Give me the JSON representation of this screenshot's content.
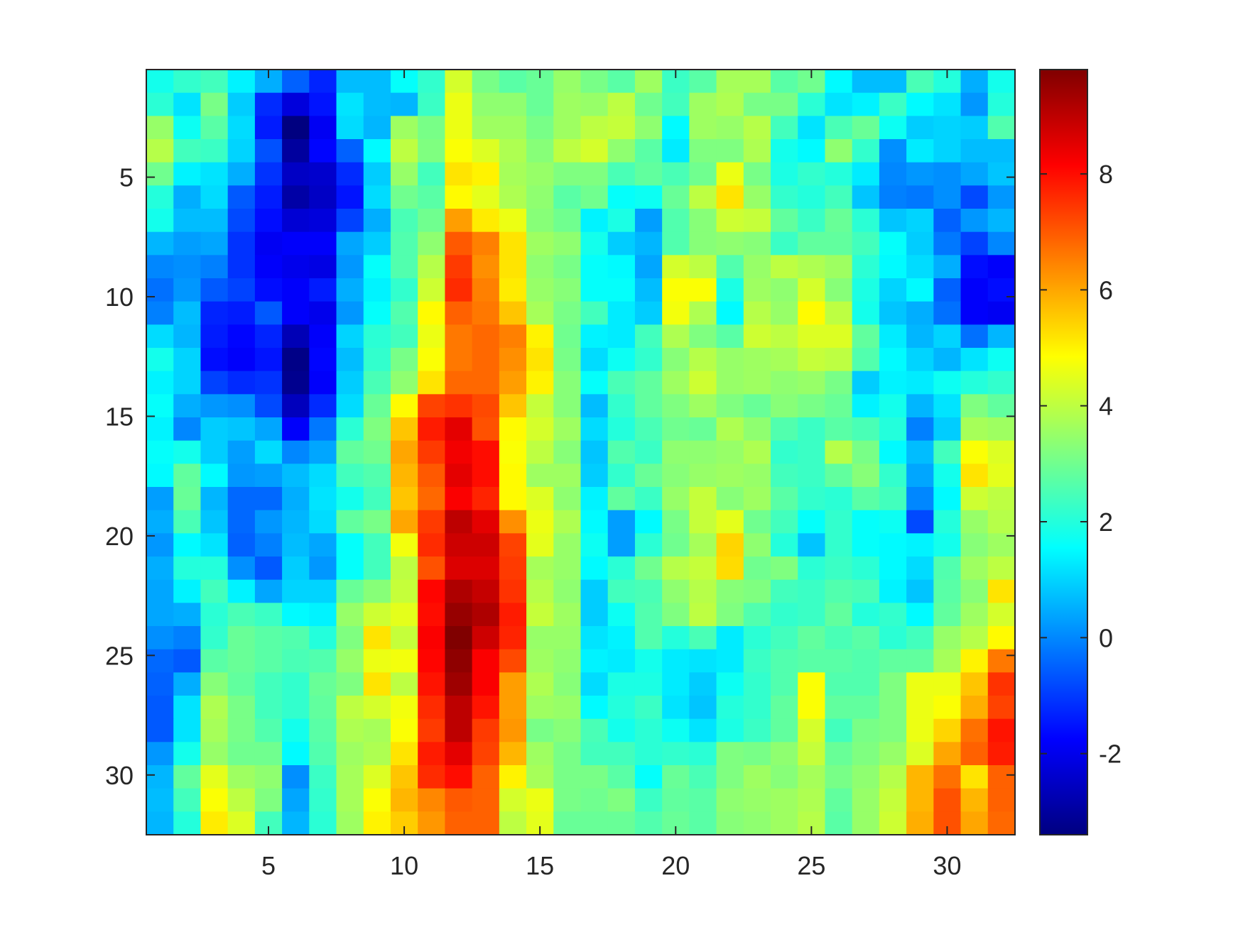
{
  "chart_data": {
    "type": "heatmap",
    "title": "",
    "xlabel": "",
    "ylabel": "",
    "xlim": [
      0.5,
      32.5
    ],
    "ylim": [
      0.5,
      32.5
    ],
    "y_direction": "reversed (row 1 at top)",
    "x_ticks": [
      5,
      10,
      15,
      20,
      25,
      30
    ],
    "y_ticks": [
      5,
      10,
      15,
      20,
      25,
      30
    ],
    "colorbar": {
      "colormap": "jet",
      "range": [
        -3.4,
        9.8
      ],
      "ticks": [
        -2,
        0,
        2,
        4,
        6,
        8
      ],
      "placement": "right"
    },
    "grid": false,
    "matrix": [
      [
        1.8,
        2.2,
        2.4,
        1.4,
        0.5,
        -0.5,
        -1.3,
        0.7,
        0.7,
        1.6,
        2.2,
        4.3,
        3.1,
        2.7,
        2.9,
        3.5,
        3.1,
        2.7,
        3.6,
        2.3,
        2.7,
        3.7,
        3.7,
        2.7,
        3.0,
        1.5,
        0.7,
        0.7,
        2.5,
        2.0,
        0.5,
        1.8
      ],
      [
        2.1,
        1.2,
        3.1,
        0.9,
        -1.2,
        -2.2,
        -1.5,
        1.2,
        0.7,
        0.6,
        2.3,
        4.6,
        3.4,
        3.4,
        2.9,
        3.6,
        3.5,
        4.0,
        3.0,
        2.4,
        3.6,
        3.8,
        3.1,
        3.1,
        2.1,
        1.2,
        1.4,
        2.3,
        1.5,
        1.2,
        0.2,
        2.0
      ],
      [
        3.5,
        1.7,
        2.7,
        1.1,
        -1.4,
        -3.4,
        -1.9,
        1.1,
        0.6,
        3.6,
        3.1,
        4.6,
        3.6,
        3.6,
        3.1,
        3.6,
        4.0,
        4.1,
        3.4,
        1.5,
        3.6,
        3.5,
        3.9,
        2.4,
        1.2,
        2.5,
        2.9,
        1.7,
        0.9,
        1.0,
        0.9,
        2.6
      ],
      [
        3.9,
        2.4,
        2.3,
        1.0,
        -0.7,
        -3.0,
        -1.7,
        -0.5,
        1.5,
        4.0,
        3.2,
        4.8,
        4.4,
        3.8,
        3.3,
        4.0,
        4.3,
        3.4,
        2.7,
        1.3,
        3.2,
        3.2,
        3.8,
        1.8,
        1.5,
        3.4,
        2.2,
        0.1,
        1.3,
        1.0,
        0.7,
        0.7
      ],
      [
        3.0,
        1.4,
        1.2,
        0.5,
        -1.1,
        -2.5,
        -2.4,
        -1.2,
        0.9,
        3.5,
        2.4,
        5.2,
        5.0,
        3.7,
        3.5,
        3.2,
        3.2,
        2.5,
        2.8,
        2.5,
        3.0,
        4.6,
        3.1,
        1.9,
        2.2,
        2.0,
        1.3,
        0.0,
        0.2,
        0.1,
        0.4,
        0.8
      ],
      [
        2.0,
        0.5,
        1.1,
        -0.6,
        -1.4,
        -2.9,
        -2.5,
        -1.5,
        1.1,
        3.0,
        2.7,
        4.9,
        4.5,
        3.8,
        3.4,
        2.7,
        3.0,
        1.6,
        1.7,
        2.9,
        4.0,
        5.2,
        3.5,
        2.2,
        2.0,
        2.4,
        0.8,
        -0.1,
        -0.2,
        0.1,
        -0.8,
        0.2
      ],
      [
        1.8,
        0.7,
        0.7,
        -0.8,
        -1.6,
        -2.3,
        -2.2,
        -0.9,
        0.5,
        2.5,
        3.0,
        6.1,
        5.1,
        4.6,
        3.3,
        3.0,
        1.4,
        1.9,
        0.3,
        2.6,
        3.3,
        4.2,
        4.1,
        2.8,
        2.3,
        2.9,
        2.1,
        0.8,
        1.0,
        -0.5,
        0.2,
        0.6
      ],
      [
        0.6,
        0.3,
        0.4,
        -1.1,
        -1.9,
        -1.8,
        -1.8,
        0.4,
        0.9,
        2.6,
        3.4,
        7.0,
        6.5,
        5.2,
        3.6,
        3.4,
        1.8,
        0.9,
        0.6,
        2.6,
        3.3,
        3.4,
        3.3,
        2.3,
        2.8,
        2.8,
        2.4,
        1.6,
        0.9,
        -0.2,
        -0.9,
        0.0
      ],
      [
        0.0,
        0.1,
        -0.1,
        -1.1,
        -1.8,
        -2.0,
        -2.1,
        0.2,
        1.6,
        2.6,
        3.9,
        7.4,
        6.3,
        5.2,
        3.4,
        3.1,
        1.6,
        1.5,
        0.4,
        4.3,
        4.0,
        2.6,
        3.5,
        4.0,
        3.8,
        3.6,
        2.1,
        1.5,
        1.1,
        0.5,
        -1.6,
        -1.8
      ],
      [
        -0.3,
        0.2,
        -0.6,
        -0.9,
        -1.6,
        -1.8,
        -1.4,
        0.5,
        1.4,
        2.2,
        4.2,
        7.6,
        6.5,
        5.1,
        3.5,
        3.3,
        1.6,
        1.6,
        0.7,
        4.8,
        4.8,
        1.9,
        3.6,
        3.4,
        4.3,
        3.3,
        1.9,
        1.0,
        1.5,
        -0.5,
        -1.8,
        -1.6
      ],
      [
        -0.1,
        0.7,
        -1.3,
        -1.4,
        -0.6,
        -1.8,
        -2.0,
        0.2,
        1.6,
        2.6,
        4.9,
        6.9,
        6.6,
        5.6,
        3.7,
        3.1,
        2.4,
        1.3,
        0.9,
        4.7,
        3.8,
        1.5,
        3.9,
        3.5,
        4.9,
        4.0,
        1.8,
        0.8,
        0.5,
        -0.3,
        -1.8,
        -1.9
      ],
      [
        1.1,
        0.6,
        -1.4,
        -1.7,
        -1.3,
        -2.7,
        -1.8,
        1.0,
        2.1,
        2.4,
        4.6,
        6.6,
        6.8,
        6.5,
        5.0,
        3.0,
        1.4,
        1.3,
        2.4,
        3.8,
        3.2,
        2.7,
        4.2,
        4.0,
        4.4,
        4.4,
        2.8,
        1.3,
        0.6,
        1.0,
        -0.3,
        0.6
      ],
      [
        1.8,
        1.0,
        -1.6,
        -1.8,
        -1.5,
        -3.3,
        -1.7,
        0.7,
        2.2,
        3.1,
        4.8,
        6.6,
        6.8,
        6.3,
        5.2,
        3.1,
        1.1,
        1.7,
        2.2,
        3.3,
        3.9,
        3.5,
        3.6,
        3.7,
        4.1,
        4.0,
        2.6,
        1.5,
        1.0,
        0.6,
        1.2,
        1.7
      ],
      [
        1.4,
        1.0,
        -0.9,
        -1.2,
        -1.1,
        -3.2,
        -1.8,
        0.9,
        2.5,
        3.4,
        5.2,
        6.8,
        6.8,
        6.1,
        5.0,
        3.3,
        1.6,
        2.5,
        2.8,
        3.6,
        4.2,
        3.5,
        3.6,
        3.4,
        3.5,
        3.1,
        0.9,
        1.4,
        1.3,
        1.7,
        2.0,
        2.2
      ],
      [
        1.6,
        0.5,
        0.2,
        0.1,
        -0.8,
        -2.6,
        -1.2,
        1.1,
        2.9,
        4.9,
        7.3,
        7.5,
        7.2,
        5.6,
        4.1,
        3.3,
        0.7,
        2.2,
        2.8,
        3.2,
        3.6,
        3.2,
        2.9,
        3.3,
        3.1,
        2.9,
        1.4,
        1.8,
        0.6,
        1.2,
        3.2,
        2.8
      ],
      [
        1.4,
        0.0,
        0.9,
        0.8,
        0.4,
        -1.8,
        -0.2,
        2.1,
        3.2,
        5.6,
        7.8,
        8.5,
        7.1,
        4.9,
        4.3,
        3.6,
        1.1,
        2.0,
        2.5,
        3.0,
        2.9,
        3.8,
        3.4,
        2.6,
        2.3,
        2.7,
        2.5,
        2.0,
        -0.1,
        0.9,
        3.7,
        3.6
      ],
      [
        1.6,
        1.8,
        0.9,
        0.3,
        1.1,
        0.0,
        0.4,
        2.8,
        3.0,
        6.0,
        7.4,
        8.3,
        8.0,
        4.8,
        4.0,
        3.3,
        0.8,
        2.6,
        2.3,
        3.4,
        3.4,
        3.5,
        3.8,
        2.2,
        2.3,
        3.9,
        3.1,
        1.5,
        0.7,
        2.4,
        4.8,
        4.4
      ],
      [
        1.5,
        2.8,
        1.5,
        0.2,
        0.3,
        0.7,
        1.1,
        2.4,
        2.6,
        5.8,
        7.0,
        8.5,
        8.0,
        4.9,
        3.6,
        3.6,
        0.9,
        2.2,
        2.9,
        3.3,
        3.5,
        3.6,
        3.5,
        2.4,
        2.3,
        2.8,
        3.3,
        2.2,
        0.4,
        1.8,
        5.2,
        4.5
      ],
      [
        0.3,
        2.9,
        0.6,
        -0.4,
        -0.4,
        0.5,
        1.2,
        1.8,
        2.4,
        5.6,
        6.8,
        8.2,
        7.7,
        4.9,
        4.4,
        3.4,
        1.4,
        2.8,
        2.3,
        3.5,
        4.1,
        3.3,
        3.6,
        2.7,
        2.2,
        2.1,
        2.7,
        2.4,
        0.0,
        1.5,
        4.2,
        4.0
      ],
      [
        0.5,
        2.5,
        0.8,
        -0.4,
        0.2,
        0.6,
        1.1,
        2.8,
        3.1,
        6.0,
        7.4,
        9.0,
        8.5,
        6.3,
        4.6,
        3.8,
        1.5,
        0.3,
        1.5,
        3.1,
        4.1,
        4.5,
        3.0,
        2.4,
        1.6,
        2.2,
        1.6,
        1.7,
        -0.8,
        2.0,
        3.5,
        3.9
      ],
      [
        0.2,
        1.5,
        1.2,
        -0.5,
        -0.1,
        0.7,
        0.4,
        1.6,
        2.4,
        4.7,
        7.6,
        8.8,
        8.8,
        7.3,
        4.5,
        3.5,
        1.7,
        0.3,
        2.1,
        3.0,
        3.7,
        5.4,
        3.4,
        2.0,
        0.8,
        2.2,
        1.6,
        1.5,
        1.4,
        1.8,
        3.3,
        3.6
      ],
      [
        0.5,
        2.0,
        2.0,
        0.1,
        -0.6,
        0.9,
        0.2,
        1.6,
        2.4,
        4.0,
        7.1,
        8.6,
        8.6,
        7.4,
        3.7,
        3.5,
        1.5,
        2.1,
        3.0,
        3.9,
        4.1,
        5.3,
        3.0,
        3.2,
        2.1,
        2.3,
        2.1,
        1.5,
        1.1,
        2.6,
        3.6,
        4.0
      ],
      [
        0.4,
        1.4,
        2.4,
        1.4,
        0.4,
        1.0,
        1.0,
        2.9,
        3.3,
        4.1,
        8.1,
        9.2,
        8.9,
        7.5,
        3.9,
        3.4,
        0.9,
        2.4,
        2.5,
        3.4,
        3.9,
        3.3,
        3.2,
        2.4,
        2.3,
        2.6,
        2.5,
        1.4,
        0.8,
        2.7,
        3.3,
        5.2
      ],
      [
        0.4,
        0.5,
        2.1,
        2.5,
        2.3,
        1.5,
        1.4,
        3.5,
        4.2,
        4.5,
        8.0,
        9.5,
        9.2,
        7.8,
        4.1,
        3.6,
        0.9,
        1.7,
        2.6,
        3.2,
        4.0,
        3.2,
        2.6,
        2.2,
        2.3,
        2.8,
        2.0,
        2.2,
        1.5,
        2.8,
        3.6,
        4.3
      ],
      [
        0.1,
        -0.1,
        2.2,
        2.9,
        2.7,
        2.6,
        2.0,
        3.2,
        5.2,
        4.1,
        8.2,
        9.8,
        8.8,
        7.7,
        3.5,
        3.5,
        1.2,
        1.4,
        2.6,
        2.0,
        2.5,
        1.3,
        2.1,
        2.4,
        2.8,
        2.5,
        2.7,
        2.1,
        2.4,
        3.5,
        3.9,
        4.9
      ],
      [
        -0.4,
        -0.6,
        2.7,
        2.9,
        2.7,
        2.5,
        2.6,
        3.5,
        4.6,
        4.7,
        8.1,
        9.6,
        8.2,
        7.2,
        3.6,
        3.4,
        1.4,
        1.3,
        1.8,
        1.3,
        1.2,
        1.3,
        2.3,
        2.6,
        2.7,
        2.7,
        2.6,
        2.8,
        2.8,
        3.7,
        5.0,
        6.6
      ],
      [
        -0.5,
        0.5,
        3.3,
        2.8,
        2.4,
        2.2,
        2.9,
        3.2,
        5.2,
        4.0,
        7.9,
        9.4,
        8.2,
        6.1,
        3.8,
        3.3,
        1.1,
        1.9,
        1.9,
        1.3,
        0.9,
        1.7,
        2.2,
        2.6,
        4.8,
        2.6,
        2.6,
        3.2,
        4.6,
        4.6,
        5.6,
        7.5
      ],
      [
        -0.6,
        1.2,
        3.8,
        3.1,
        2.4,
        2.2,
        2.8,
        4.0,
        4.3,
        4.7,
        7.6,
        9.0,
        7.9,
        6.1,
        3.6,
        3.5,
        1.5,
        2.0,
        2.3,
        1.2,
        0.8,
        2.0,
        2.2,
        2.8,
        4.8,
        2.8,
        2.8,
        3.2,
        4.6,
        4.8,
        5.9,
        7.3
      ],
      [
        -0.6,
        1.2,
        3.7,
        3.1,
        2.6,
        1.8,
        2.7,
        3.8,
        3.7,
        4.8,
        7.4,
        9.0,
        7.4,
        6.2,
        3.1,
        3.3,
        2.5,
        1.8,
        2.1,
        1.7,
        1.2,
        1.9,
        2.3,
        2.8,
        4.3,
        2.4,
        3.1,
        3.2,
        4.6,
        5.4,
        6.7,
        7.9
      ],
      [
        0.2,
        1.8,
        3.5,
        3.0,
        3.0,
        1.5,
        2.6,
        3.6,
        3.8,
        5.2,
        7.8,
        8.5,
        7.3,
        5.8,
        3.6,
        3.1,
        2.4,
        2.4,
        2.1,
        2.2,
        2.1,
        3.2,
        3.1,
        3.4,
        4.1,
        2.9,
        3.2,
        3.5,
        4.4,
        6.0,
        6.9,
        7.8
      ],
      [
        0.6,
        2.8,
        4.5,
        3.6,
        3.4,
        0.1,
        2.3,
        3.7,
        4.4,
        5.6,
        7.6,
        8.0,
        6.9,
        5.0,
        3.7,
        3.1,
        3.1,
        2.7,
        1.6,
        2.9,
        2.5,
        3.2,
        3.6,
        3.3,
        3.7,
        3.1,
        3.4,
        3.9,
        5.8,
        6.7,
        5.2,
        6.9
      ],
      [
        0.7,
        2.4,
        4.8,
        4.0,
        3.2,
        0.4,
        2.2,
        3.7,
        4.8,
        5.8,
        6.4,
        7.0,
        6.9,
        4.3,
        4.6,
        3.1,
        3.0,
        3.2,
        2.3,
        2.8,
        2.7,
        3.4,
        3.5,
        3.6,
        3.8,
        2.8,
        3.5,
        4.1,
        5.8,
        7.1,
        5.8,
        6.9
      ],
      [
        0.6,
        2.0,
        5.1,
        4.4,
        2.4,
        0.6,
        2.1,
        3.6,
        5.0,
        5.5,
        6.2,
        6.9,
        6.9,
        4.0,
        4.5,
        2.9,
        2.9,
        2.9,
        2.6,
        2.9,
        2.7,
        3.3,
        3.4,
        3.6,
        3.9,
        2.7,
        3.5,
        4.2,
        5.9,
        7.1,
        6.0,
        6.8
      ]
    ]
  }
}
